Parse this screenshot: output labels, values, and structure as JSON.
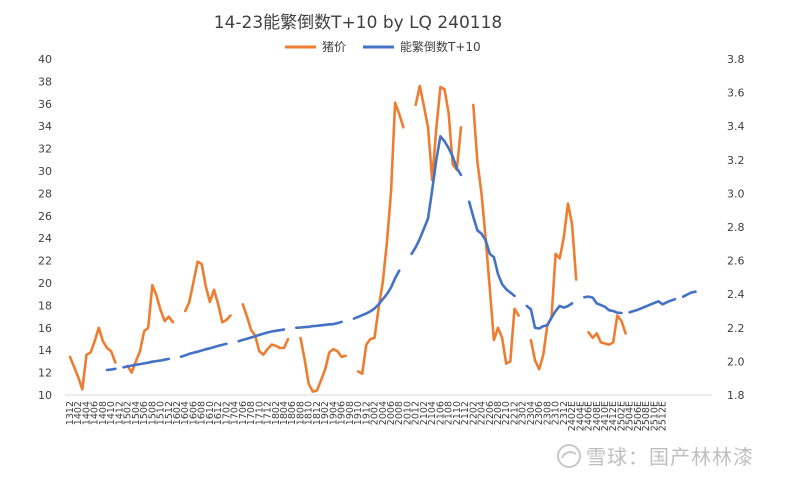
{
  "chart_data": {
    "type": "line",
    "title": "14-23能繁倒数T+10  by LQ 240118",
    "y_left": {
      "ylim": [
        10,
        40
      ],
      "ticks": [
        10,
        12,
        14,
        16,
        18,
        20,
        22,
        24,
        26,
        28,
        30,
        32,
        34,
        36,
        38,
        40
      ]
    },
    "y_right": {
      "ylim": [
        1.8,
        3.8
      ],
      "ticks": [
        "1.8",
        "2.0",
        "2.2",
        "2.4",
        "2.6",
        "2.8",
        "3.0",
        "3.2",
        "3.4",
        "3.6",
        "3.8"
      ]
    },
    "x_ticks": [
      "1312",
      "1402",
      "1404",
      "1406",
      "1408",
      "1410",
      "1412",
      "1502",
      "1504",
      "1506",
      "1508",
      "1510",
      "1512",
      "1602",
      "1604",
      "1606",
      "1608",
      "1610",
      "1612",
      "1702",
      "1704",
      "1706",
      "1708",
      "1710",
      "1712",
      "1802",
      "1804",
      "1806",
      "1808",
      "1810",
      "1812",
      "1902",
      "1904",
      "1906",
      "1908",
      "1910",
      "1912",
      "2002",
      "2004",
      "2006",
      "2008",
      "2010",
      "2012",
      "2102",
      "2104",
      "2106",
      "2108",
      "2110",
      "2112",
      "2202",
      "2204",
      "2206",
      "2208",
      "2210",
      "2212",
      "2302",
      "2304",
      "2306",
      "2308",
      "2310",
      "2312",
      "2402E",
      "2404E",
      "2406E",
      "2408E",
      "2410E",
      "2412E",
      "2502E",
      "2504E",
      "2506E",
      "2508E",
      "2510E",
      "2512E"
    ],
    "legend": {
      "position": "top-center"
    },
    "series": [
      {
        "name": "猪价",
        "axis": "left",
        "color": "#ED7D31",
        "segments": [
          [
            [
              0,
              13.4
            ],
            [
              1,
              12.5
            ],
            [
              2,
              11.6
            ],
            [
              3,
              10.5
            ],
            [
              4,
              13.6
            ],
            [
              5,
              13.8
            ],
            [
              6,
              14.8
            ],
            [
              7,
              16.0
            ],
            [
              8,
              14.8
            ],
            [
              9,
              14.2
            ],
            [
              10,
              13.9
            ],
            [
              11,
              12.9
            ]
          ],
          [
            [
              14,
              12.6
            ],
            [
              15,
              12.0
            ],
            [
              16,
              13.0
            ],
            [
              17,
              13.9
            ],
            [
              18,
              15.7
            ],
            [
              19,
              16.0
            ],
            [
              20,
              19.8
            ],
            [
              21,
              18.9
            ],
            [
              22,
              17.6
            ],
            [
              23,
              16.6
            ],
            [
              24,
              17.0
            ],
            [
              25,
              16.5
            ]
          ],
          [
            [
              28,
              17.5
            ],
            [
              29,
              18.3
            ],
            [
              30,
              20.1
            ],
            [
              31,
              21.9
            ],
            [
              32,
              21.7
            ],
            [
              33,
              19.7
            ],
            [
              34,
              18.3
            ],
            [
              35,
              19.4
            ],
            [
              36,
              18.1
            ],
            [
              37,
              16.5
            ],
            [
              38,
              16.7
            ],
            [
              39,
              17.1
            ]
          ],
          [
            [
              42,
              18.1
            ],
            [
              43,
              17.0
            ],
            [
              44,
              15.8
            ],
            [
              45,
              15.3
            ],
            [
              46,
              13.9
            ],
            [
              47,
              13.6
            ],
            [
              48,
              14.1
            ],
            [
              49,
              14.5
            ],
            [
              50,
              14.4
            ],
            [
              51,
              14.2
            ],
            [
              52,
              14.2
            ],
            [
              53,
              15.0
            ]
          ],
          [
            [
              56,
              15.1
            ],
            [
              57,
              13.2
            ],
            [
              58,
              11.0
            ],
            [
              59,
              10.3
            ],
            [
              60,
              10.4
            ],
            [
              61,
              11.3
            ],
            [
              62,
              12.3
            ],
            [
              63,
              13.8
            ],
            [
              64,
              14.1
            ],
            [
              65,
              13.9
            ],
            [
              66,
              13.4
            ],
            [
              67,
              13.5
            ]
          ],
          [
            [
              70,
              12.1
            ],
            [
              71,
              11.9
            ],
            [
              72,
              14.5
            ],
            [
              73,
              15.0
            ],
            [
              74,
              15.1
            ],
            [
              75,
              17.8
            ],
            [
              76,
              20.1
            ],
            [
              77,
              23.6
            ],
            [
              78,
              28.1
            ],
            [
              79,
              36.1
            ],
            [
              80,
              35.1
            ],
            [
              81,
              33.9
            ]
          ],
          [
            [
              84,
              35.9
            ],
            [
              85,
              37.6
            ],
            [
              86,
              35.8
            ],
            [
              87,
              33.9
            ],
            [
              88,
              29.2
            ],
            [
              89,
              33.8
            ],
            [
              90,
              37.5
            ],
            [
              91,
              37.3
            ],
            [
              92,
              35.2
            ],
            [
              93,
              30.6
            ],
            [
              94,
              30.1
            ],
            [
              95,
              33.9
            ]
          ],
          [
            [
              98,
              35.9
            ],
            [
              99,
              30.8
            ],
            [
              100,
              28.0
            ],
            [
              101,
              23.9
            ],
            [
              102,
              19.5
            ],
            [
              103,
              14.9
            ],
            [
              104,
              16.0
            ],
            [
              105,
              15.1
            ],
            [
              106,
              12.8
            ],
            [
              107,
              13.0
            ],
            [
              108,
              17.7
            ],
            [
              109,
              17.1
            ]
          ],
          [
            [
              112,
              14.9
            ],
            [
              113,
              13.1
            ],
            [
              114,
              12.3
            ],
            [
              115,
              13.6
            ],
            [
              116,
              16.3
            ],
            [
              117,
              16.9
            ],
            [
              118,
              22.6
            ],
            [
              119,
              22.2
            ],
            [
              120,
              24.1
            ],
            [
              121,
              27.1
            ],
            [
              122,
              25.2
            ],
            [
              123,
              20.3
            ]
          ],
          [
            [
              126,
              15.6
            ],
            [
              127,
              15.1
            ],
            [
              128,
              15.5
            ],
            [
              129,
              14.7
            ],
            [
              130,
              14.6
            ],
            [
              131,
              14.5
            ],
            [
              132,
              14.7
            ],
            [
              133,
              17.1
            ],
            [
              134,
              16.6
            ],
            [
              135,
              15.5
            ]
          ]
        ]
      },
      {
        "name": "能繁倒数T+10",
        "axis": "right",
        "color": "#4472C4",
        "segments": [
          [
            [
              9,
              1.949
            ],
            [
              10,
              1.952
            ],
            [
              11,
              1.956
            ]
          ],
          [
            [
              13,
              1.965
            ],
            [
              14,
              1.97
            ],
            [
              15,
              1.975
            ],
            [
              16,
              1.98
            ],
            [
              17,
              1.984
            ],
            [
              18,
              1.988
            ],
            [
              19,
              1.992
            ],
            [
              20,
              1.998
            ],
            [
              21,
              2.002
            ],
            [
              22,
              2.005
            ],
            [
              23,
              2.01
            ],
            [
              24,
              2.015
            ]
          ],
          [
            [
              27,
              2.028
            ],
            [
              28,
              2.036
            ],
            [
              29,
              2.045
            ],
            [
              30,
              2.052
            ],
            [
              31,
              2.058
            ],
            [
              32,
              2.065
            ],
            [
              33,
              2.072
            ],
            [
              34,
              2.078
            ],
            [
              35,
              2.085
            ],
            [
              36,
              2.092
            ],
            [
              37,
              2.098
            ],
            [
              38,
              2.105
            ]
          ],
          [
            [
              41,
              2.12
            ],
            [
              42,
              2.128
            ],
            [
              43,
              2.135
            ],
            [
              44,
              2.142
            ],
            [
              45,
              2.15
            ],
            [
              46,
              2.158
            ],
            [
              47,
              2.165
            ],
            [
              48,
              2.172
            ],
            [
              49,
              2.178
            ],
            [
              50,
              2.182
            ],
            [
              51,
              2.186
            ],
            [
              52,
              2.19
            ]
          ],
          [
            [
              55,
              2.2
            ],
            [
              56,
              2.202
            ],
            [
              57,
              2.204
            ],
            [
              58,
              2.206
            ],
            [
              59,
              2.21
            ],
            [
              60,
              2.212
            ],
            [
              61,
              2.215
            ],
            [
              62,
              2.218
            ],
            [
              63,
              2.22
            ],
            [
              64,
              2.222
            ],
            [
              65,
              2.228
            ],
            [
              66,
              2.235
            ]
          ],
          [
            [
              69,
              2.255
            ],
            [
              70,
              2.265
            ],
            [
              71,
              2.275
            ],
            [
              72,
              2.285
            ],
            [
              73,
              2.298
            ],
            [
              74,
              2.315
            ],
            [
              75,
              2.34
            ],
            [
              76,
              2.37
            ],
            [
              77,
              2.4
            ],
            [
              78,
              2.44
            ],
            [
              79,
              2.495
            ],
            [
              80,
              2.54
            ]
          ],
          [
            [
              83,
              2.64
            ],
            [
              84,
              2.68
            ],
            [
              85,
              2.73
            ],
            [
              86,
              2.79
            ],
            [
              87,
              2.85
            ],
            [
              88,
              3.02
            ],
            [
              89,
              3.2
            ],
            [
              90,
              3.34
            ],
            [
              91,
              3.31
            ],
            [
              92,
              3.27
            ],
            [
              93,
              3.22
            ],
            [
              94,
              3.15
            ],
            [
              95,
              3.11
            ]
          ],
          [
            [
              97,
              2.95
            ],
            [
              98,
              2.86
            ],
            [
              99,
              2.78
            ],
            [
              100,
              2.76
            ],
            [
              101,
              2.72
            ],
            [
              102,
              2.64
            ],
            [
              103,
              2.62
            ],
            [
              104,
              2.52
            ],
            [
              105,
              2.46
            ],
            [
              106,
              2.43
            ],
            [
              107,
              2.41
            ],
            [
              108,
              2.39
            ]
          ],
          [
            [
              111,
              2.33
            ],
            [
              112,
              2.31
            ],
            [
              113,
              2.2
            ],
            [
              114,
              2.196
            ],
            [
              115,
              2.21
            ],
            [
              116,
              2.215
            ],
            [
              117,
              2.26
            ],
            [
              118,
              2.3
            ],
            [
              119,
              2.33
            ],
            [
              120,
              2.32
            ],
            [
              121,
              2.33
            ],
            [
              122,
              2.345
            ]
          ],
          [
            [
              125,
              2.382
            ],
            [
              126,
              2.386
            ],
            [
              127,
              2.38
            ],
            [
              128,
              2.345
            ],
            [
              129,
              2.335
            ],
            [
              130,
              2.325
            ],
            [
              131,
              2.305
            ],
            [
              132,
              2.3
            ],
            [
              133,
              2.29
            ],
            [
              134,
              2.288
            ]
          ],
          [
            [
              136,
              2.292
            ],
            [
              137,
              2.3
            ],
            [
              138,
              2.308
            ],
            [
              139,
              2.318
            ],
            [
              140,
              2.328
            ],
            [
              141,
              2.338
            ],
            [
              142,
              2.348
            ],
            [
              143,
              2.358
            ],
            [
              144,
              2.34
            ],
            [
              145,
              2.352
            ],
            [
              146,
              2.362
            ],
            [
              147,
              2.37
            ]
          ],
          [
            [
              149,
              2.385
            ],
            [
              150,
              2.398
            ],
            [
              151,
              2.41
            ],
            [
              152,
              2.415
            ]
          ]
        ]
      }
    ]
  }
}
